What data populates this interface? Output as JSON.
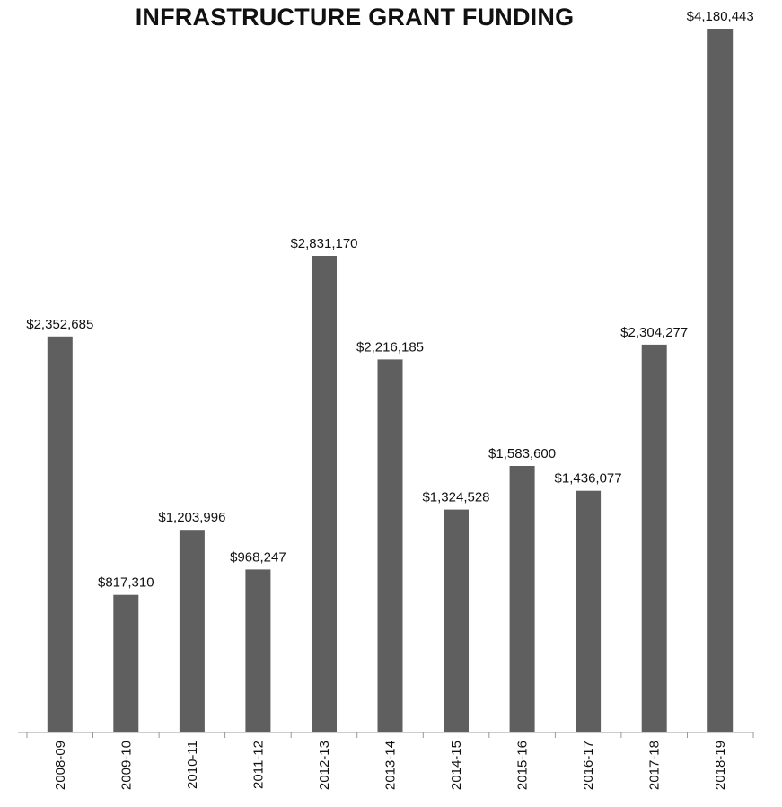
{
  "chart_data": {
    "type": "bar",
    "title": "INFRASTRUCTURE GRANT FUNDING",
    "categories": [
      "2008-09",
      "2009-10",
      "2010-11",
      "2011-12",
      "2012-13",
      "2013-14",
      "2014-15",
      "2015-16",
      "2016-17",
      "2017-18",
      "2018-19"
    ],
    "values": [
      2352685,
      817310,
      1203996,
      968247,
      2831170,
      2216185,
      1324528,
      1583600,
      1436077,
      2304277,
      4180443
    ],
    "value_labels": [
      "$2,352,685",
      "$817,310",
      "$1,203,996",
      "$968,247",
      "$2,831,170",
      "$2,216,185",
      "$1,324,528",
      "$1,583,600",
      "$1,436,077",
      "$2,304,277",
      "$4,180,443"
    ],
    "xlabel": "",
    "ylabel": "",
    "ylim": [
      0,
      4180443
    ],
    "grid": false,
    "bar_color": "#5f5f5f"
  }
}
